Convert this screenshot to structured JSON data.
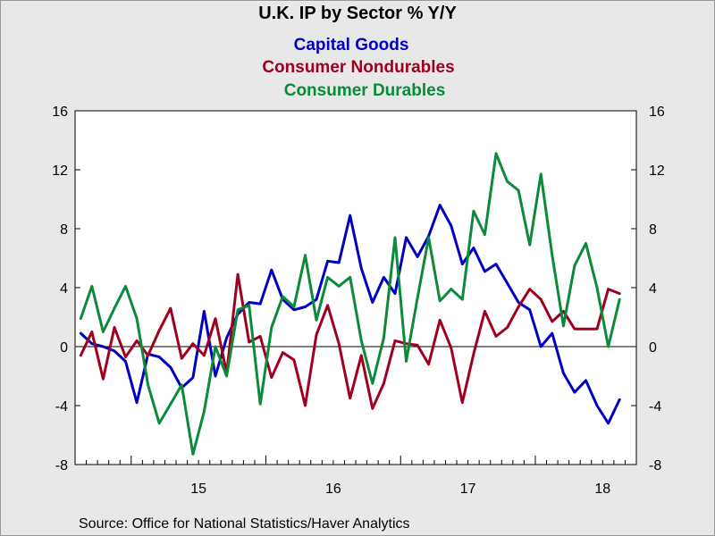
{
  "chart_data": {
    "type": "line",
    "title": "U.K. IP by Sector % Y/Y",
    "source": "Source:  Office for National Statistics/Haver Analytics",
    "ylim": [
      -8,
      16
    ],
    "yticks": [
      -8,
      -4,
      0,
      4,
      8,
      12,
      16
    ],
    "ytick_labels": [
      "-8",
      "-4",
      "0",
      "4",
      "8",
      "12",
      "16"
    ],
    "x_start_month": 8,
    "x_start_year": 2014,
    "x_months": 50,
    "xtick_labels": [
      {
        "label": "15",
        "year": 2015
      },
      {
        "label": "16",
        "year": 2016
      },
      {
        "label": "17",
        "year": 2017
      },
      {
        "label": "18",
        "year": 2018
      }
    ],
    "grid": false,
    "zero_line": true,
    "legend_placement": "top-center",
    "series": [
      {
        "name": "Capital Goods",
        "color": "#0000c0",
        "values": [
          0.9,
          0.2,
          0.0,
          -0.3,
          -1.0,
          -3.8,
          -0.5,
          -0.7,
          -1.4,
          -2.8,
          -2.1,
          2.4,
          -2.0,
          0.6,
          2.2,
          3.0,
          2.9,
          5.2,
          3.2,
          2.5,
          2.7,
          3.2,
          5.8,
          5.7,
          8.9,
          5.3,
          3.0,
          4.7,
          3.6,
          7.4,
          6.1,
          7.5,
          9.6,
          8.2,
          5.6,
          6.7,
          5.1,
          5.6,
          4.3,
          3.0,
          2.5,
          0.0,
          0.9,
          -1.8,
          -3.1,
          -2.3,
          -4.0,
          -5.2,
          -3.6
        ]
      },
      {
        "name": "Consumer Nondurables",
        "color": "#a00020",
        "values": [
          -0.6,
          1.0,
          -2.2,
          1.3,
          -0.7,
          0.4,
          -0.6,
          1.1,
          2.6,
          -0.8,
          0.2,
          -0.6,
          1.9,
          -1.8,
          4.9,
          0.3,
          0.7,
          -2.1,
          -0.4,
          -0.9,
          -4.0,
          0.8,
          2.8,
          0.2,
          -3.5,
          -0.6,
          -4.2,
          -2.5,
          0.4,
          0.2,
          0.1,
          -1.2,
          1.8,
          -0.1,
          -3.8,
          -0.5,
          2.4,
          0.7,
          1.3,
          2.7,
          3.9,
          3.2,
          1.7,
          2.4,
          1.2,
          1.2,
          1.2,
          3.9,
          3.6
        ]
      },
      {
        "name": "Consumer Durables",
        "color": "#0a8a3a",
        "values": [
          1.9,
          4.1,
          1.0,
          2.6,
          4.1,
          1.9,
          -2.6,
          -5.2,
          -3.9,
          -2.6,
          -7.3,
          -4.4,
          0.0,
          -2.0,
          2.5,
          2.8,
          -3.9,
          1.3,
          3.4,
          2.7,
          6.2,
          1.8,
          4.7,
          4.1,
          4.7,
          0.4,
          -2.5,
          0.6,
          7.4,
          -1.0,
          3.3,
          7.4,
          3.1,
          3.9,
          3.2,
          9.2,
          7.6,
          13.1,
          11.2,
          10.6,
          6.9,
          11.7,
          6.2,
          1.4,
          5.5,
          7.0,
          4.0,
          0.0,
          3.2
        ]
      }
    ]
  }
}
